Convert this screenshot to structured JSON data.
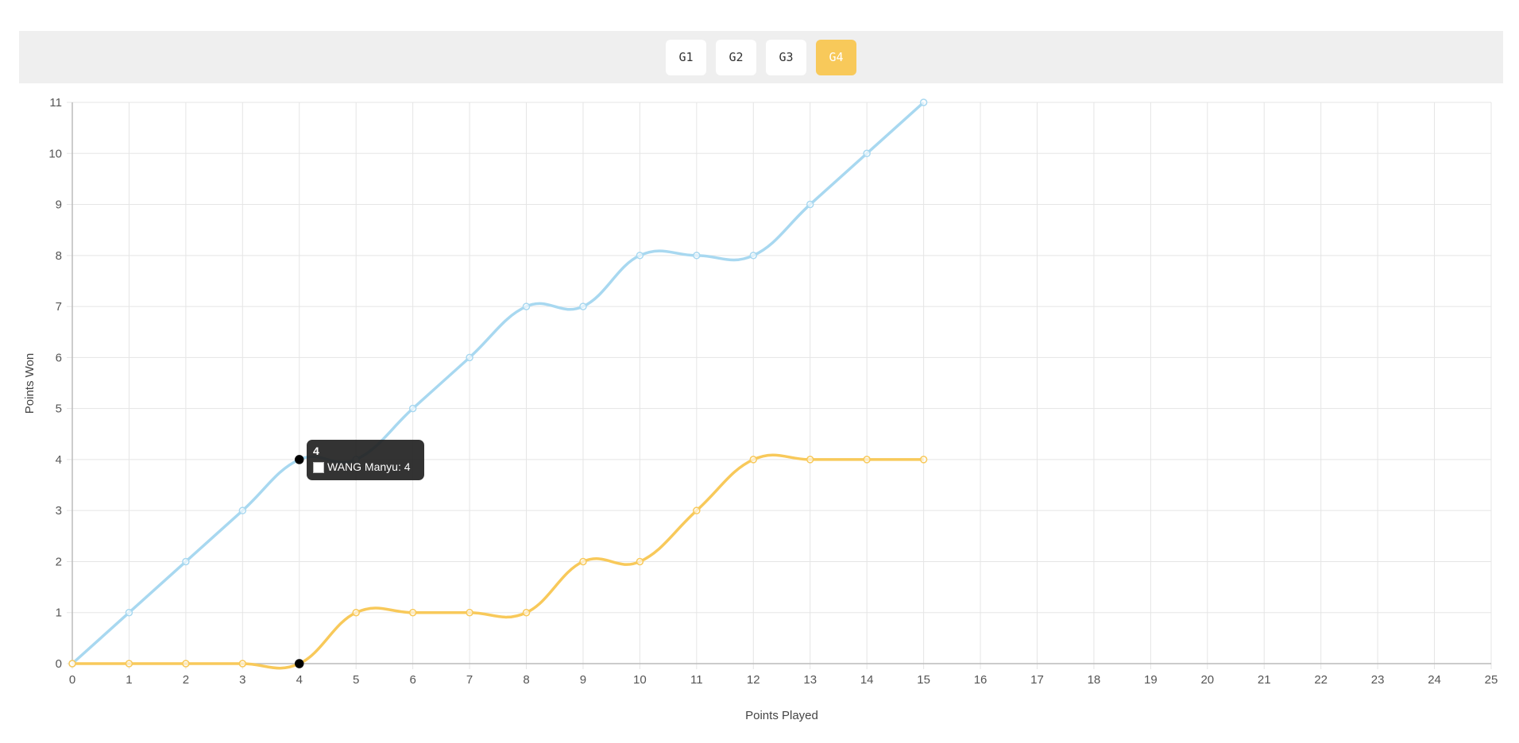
{
  "tabs": [
    {
      "label": "G1",
      "active": false
    },
    {
      "label": "G2",
      "active": false
    },
    {
      "label": "G3",
      "active": false
    },
    {
      "label": "G4",
      "active": true
    }
  ],
  "colors": {
    "series_a": "#a8d8f0",
    "series_b": "#f8c95a",
    "active_tab": "#f8c95a",
    "grid": "#e5e5e5",
    "toolbar": "#efefef"
  },
  "tooltip": {
    "title": "4",
    "label": "WANG Manyu: 4"
  },
  "chart_data": {
    "type": "line",
    "title": "",
    "xlabel": "Points Played",
    "ylabel": "Points Won",
    "xlim": [
      0,
      25
    ],
    "ylim": [
      0,
      11
    ],
    "grid": true,
    "x_ticks": [
      0,
      1,
      2,
      3,
      4,
      5,
      6,
      7,
      8,
      9,
      10,
      11,
      12,
      13,
      14,
      15,
      16,
      17,
      18,
      19,
      20,
      21,
      22,
      23,
      24,
      25
    ],
    "y_ticks": [
      0,
      1,
      2,
      3,
      4,
      5,
      6,
      7,
      8,
      9,
      10,
      11
    ],
    "x": [
      0,
      1,
      2,
      3,
      4,
      5,
      6,
      7,
      8,
      9,
      10,
      11,
      12,
      13,
      14,
      15
    ],
    "series": [
      {
        "name": "WANG Manyu",
        "values": [
          0,
          1,
          2,
          3,
          4,
          4,
          5,
          6,
          7,
          7,
          8,
          8,
          8,
          9,
          10,
          11
        ]
      },
      {
        "values": [
          0,
          0,
          0,
          0,
          0,
          1,
          1,
          1,
          1,
          2,
          2,
          3,
          4,
          4,
          4,
          4
        ]
      }
    ],
    "highlight_index": 4
  }
}
